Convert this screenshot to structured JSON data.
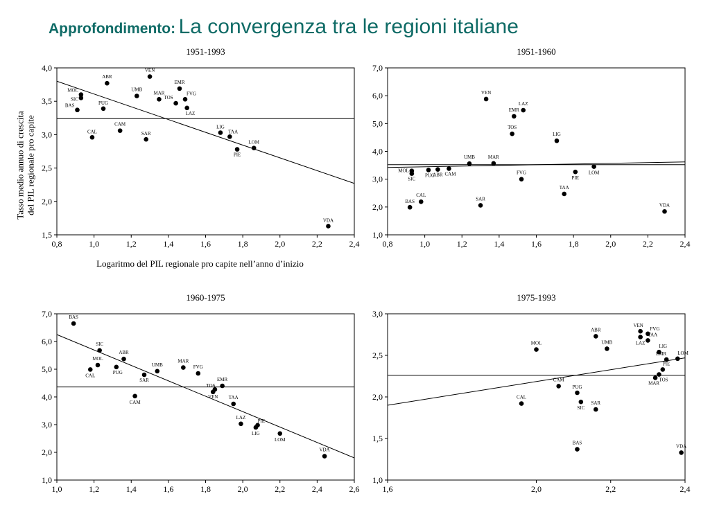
{
  "slide": {
    "prefix": "Approfondimento:",
    "title": "La convergenza tra le regioni italiane"
  },
  "colors": {
    "title": "#0f6b66",
    "ink": "#000000"
  },
  "chart_data": [
    {
      "type": "scatter",
      "title": "1951-1993",
      "xlabel": "Logaritmo del PIL regionale pro capite nell’anno d’inizio",
      "ylabel": "Tasso medio annuo di crescita del PIL regionale pro capite",
      "xlim": [
        0.8,
        2.4
      ],
      "ylim": [
        1.5,
        4.0
      ],
      "xticks": [
        "0,8",
        "1,0",
        "1,2",
        "1,4",
        "1,6",
        "1,8",
        "2,0",
        "2,2",
        "2,4"
      ],
      "yticks": [
        "1,5",
        "2,0",
        "2,5",
        "3,0",
        "3,5",
        "4,0"
      ],
      "hline": 3.24,
      "trend": [
        [
          0.8,
          3.8
        ],
        [
          2.4,
          2.27
        ]
      ],
      "points": [
        {
          "label": "MOL",
          "x": 0.93,
          "y": 3.6
        },
        {
          "label": "SIC",
          "x": 0.93,
          "y": 3.55
        },
        {
          "label": "BAS",
          "x": 0.91,
          "y": 3.37
        },
        {
          "label": "ABR",
          "x": 1.07,
          "y": 3.77
        },
        {
          "label": "PUG",
          "x": 1.05,
          "y": 3.39
        },
        {
          "label": "CAL",
          "x": 0.99,
          "y": 2.96
        },
        {
          "label": "CAM",
          "x": 1.14,
          "y": 3.06
        },
        {
          "label": "VEN",
          "x": 1.3,
          "y": 3.87
        },
        {
          "label": "UMB",
          "x": 1.23,
          "y": 3.58
        },
        {
          "label": "MAR",
          "x": 1.35,
          "y": 3.53
        },
        {
          "label": "EMR",
          "x": 1.46,
          "y": 3.69
        },
        {
          "label": "FVG",
          "x": 1.49,
          "y": 3.53
        },
        {
          "label": "TOS",
          "x": 1.44,
          "y": 3.47
        },
        {
          "label": "LAZ",
          "x": 1.5,
          "y": 3.4
        },
        {
          "label": "SAR",
          "x": 1.28,
          "y": 2.93
        },
        {
          "label": "LIG",
          "x": 1.68,
          "y": 3.03
        },
        {
          "label": "TAA",
          "x": 1.73,
          "y": 2.97
        },
        {
          "label": "PIE",
          "x": 1.77,
          "y": 2.78
        },
        {
          "label": "LOM",
          "x": 1.86,
          "y": 2.8
        },
        {
          "label": "VDA",
          "x": 2.26,
          "y": 1.63
        }
      ]
    },
    {
      "type": "scatter",
      "title": "1951-1960",
      "xlabel": "",
      "ylabel": "",
      "xlim": [
        0.8,
        2.4
      ],
      "ylim": [
        1.0,
        7.0
      ],
      "xticks": [
        "0,8",
        "1,0",
        "1,2",
        "1,4",
        "1,6",
        "1,8",
        "2,0",
        "2,2",
        "2,4"
      ],
      "yticks": [
        "1,0",
        "2,0",
        "3,0",
        "4,0",
        "5,0",
        "6,0",
        "7,0"
      ],
      "hline": 3.52,
      "trend": [
        [
          0.8,
          3.42
        ],
        [
          2.4,
          3.62
        ]
      ],
      "points": [
        {
          "label": "VEN",
          "x": 1.33,
          "y": 5.88
        },
        {
          "label": "LAZ",
          "x": 1.53,
          "y": 5.48
        },
        {
          "label": "EMR",
          "x": 1.48,
          "y": 5.26
        },
        {
          "label": "TOS",
          "x": 1.47,
          "y": 4.63
        },
        {
          "label": "LIG",
          "x": 1.71,
          "y": 4.38
        },
        {
          "label": "UMB",
          "x": 1.24,
          "y": 3.56
        },
        {
          "label": "MAR",
          "x": 1.37,
          "y": 3.57
        },
        {
          "label": "MOL",
          "x": 0.93,
          "y": 3.3
        },
        {
          "label": "SIC",
          "x": 0.93,
          "y": 3.2
        },
        {
          "label": "PUG",
          "x": 1.02,
          "y": 3.33
        },
        {
          "label": "ABR",
          "x": 1.07,
          "y": 3.35
        },
        {
          "label": "CAM",
          "x": 1.13,
          "y": 3.38
        },
        {
          "label": "PIE",
          "x": 1.81,
          "y": 3.26
        },
        {
          "label": "LOM",
          "x": 1.91,
          "y": 3.45
        },
        {
          "label": "FVG",
          "x": 1.52,
          "y": 3.0
        },
        {
          "label": "TAA",
          "x": 1.75,
          "y": 2.47
        },
        {
          "label": "CAL",
          "x": 0.98,
          "y": 2.19
        },
        {
          "label": "BAS",
          "x": 0.92,
          "y": 1.99
        },
        {
          "label": "SAR",
          "x": 1.3,
          "y": 2.06
        },
        {
          "label": "VDA",
          "x": 2.29,
          "y": 1.84
        }
      ]
    },
    {
      "type": "scatter",
      "title": "1960-1975",
      "xlabel": "",
      "ylabel": "",
      "xlim": [
        1.0,
        2.6
      ],
      "ylim": [
        1.0,
        7.0
      ],
      "xticks": [
        "1,0",
        "1,2",
        "1,4",
        "1,6",
        "1,8",
        "2,0",
        "2,2",
        "2,4",
        "2,6"
      ],
      "yticks": [
        "1,0",
        "2,0",
        "3,0",
        "4,0",
        "5,0",
        "6,0",
        "7,0"
      ],
      "hline": 4.36,
      "trend": [
        [
          1.0,
          6.25
        ],
        [
          2.6,
          1.8
        ]
      ],
      "points": [
        {
          "label": "BAS",
          "x": 1.09,
          "y": 6.65
        },
        {
          "label": "SIC",
          "x": 1.23,
          "y": 5.68
        },
        {
          "label": "ABR",
          "x": 1.36,
          "y": 5.37
        },
        {
          "label": "MOL",
          "x": 1.22,
          "y": 5.15
        },
        {
          "label": "CAL",
          "x": 1.18,
          "y": 4.99
        },
        {
          "label": "PUG",
          "x": 1.32,
          "y": 5.08
        },
        {
          "label": "UMB",
          "x": 1.54,
          "y": 4.93
        },
        {
          "label": "SAR",
          "x": 1.47,
          "y": 4.8
        },
        {
          "label": "MAR",
          "x": 1.68,
          "y": 5.06
        },
        {
          "label": "FVG",
          "x": 1.76,
          "y": 4.85
        },
        {
          "label": "EMR",
          "x": 1.89,
          "y": 4.4
        },
        {
          "label": "TOS",
          "x": 1.85,
          "y": 4.27
        },
        {
          "label": "VEN",
          "x": 1.84,
          "y": 4.18
        },
        {
          "label": "CAM",
          "x": 1.42,
          "y": 4.03
        },
        {
          "label": "TAA",
          "x": 1.95,
          "y": 3.75
        },
        {
          "label": "LAZ",
          "x": 1.99,
          "y": 3.03
        },
        {
          "label": "PIE",
          "x": 2.08,
          "y": 2.98
        },
        {
          "label": "LIG",
          "x": 2.07,
          "y": 2.9
        },
        {
          "label": "LOM",
          "x": 2.2,
          "y": 2.68
        },
        {
          "label": "VDA",
          "x": 2.44,
          "y": 1.86
        }
      ]
    },
    {
      "type": "scatter",
      "title": "1975-1993",
      "xlabel": "",
      "ylabel": "",
      "xlim": [
        1.6,
        2.4
      ],
      "ylim": [
        1.0,
        3.0
      ],
      "xticks": [
        "1,6",
        "2,0",
        "2,2",
        "2,4"
      ],
      "xtick_values": [
        1.6,
        2.0,
        2.2,
        2.4
      ],
      "yticks": [
        "1,0",
        "1,5",
        "2,0",
        "2,5",
        "3,0"
      ],
      "hline": 2.26,
      "trend": [
        [
          1.6,
          1.9
        ],
        [
          2.4,
          2.47
        ]
      ],
      "points": [
        {
          "label": "VEN",
          "x": 2.28,
          "y": 2.79
        },
        {
          "label": "FVG",
          "x": 2.3,
          "y": 2.76
        },
        {
          "label": "LAZ",
          "x": 2.28,
          "y": 2.72
        },
        {
          "label": "TAA",
          "x": 2.3,
          "y": 2.68
        },
        {
          "label": "ABR",
          "x": 2.16,
          "y": 2.73
        },
        {
          "label": "MOL",
          "x": 2.0,
          "y": 2.57
        },
        {
          "label": "UMB",
          "x": 2.19,
          "y": 2.58
        },
        {
          "label": "LIG",
          "x": 2.33,
          "y": 2.54
        },
        {
          "label": "EMR",
          "x": 2.35,
          "y": 2.45
        },
        {
          "label": "LOM",
          "x": 2.38,
          "y": 2.46
        },
        {
          "label": "PIE",
          "x": 2.34,
          "y": 2.33
        },
        {
          "label": "TOS",
          "x": 2.33,
          "y": 2.27
        },
        {
          "label": "MAR",
          "x": 2.32,
          "y": 2.23
        },
        {
          "label": "CAM",
          "x": 2.06,
          "y": 2.13
        },
        {
          "label": "PUG",
          "x": 2.11,
          "y": 2.05
        },
        {
          "label": "SIC",
          "x": 2.12,
          "y": 1.94
        },
        {
          "label": "SAR",
          "x": 2.16,
          "y": 1.85
        },
        {
          "label": "CAL",
          "x": 1.96,
          "y": 1.92
        },
        {
          "label": "BAS",
          "x": 2.11,
          "y": 1.37
        },
        {
          "label": "VDA",
          "x": 2.39,
          "y": 1.33
        }
      ]
    }
  ]
}
